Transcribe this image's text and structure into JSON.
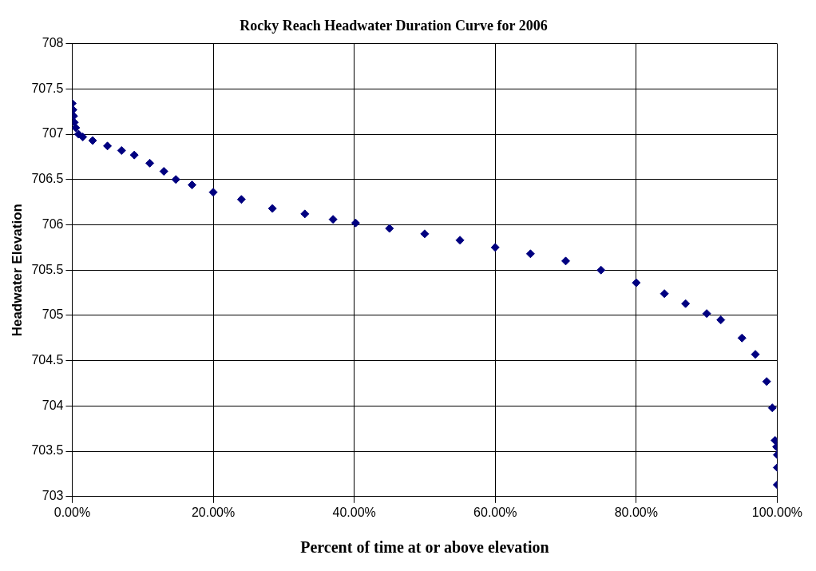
{
  "chart_data": {
    "type": "scatter",
    "title": "Rocky Reach Headwater Duration Curve for 2006",
    "xlabel": "Percent of time at or above elevation",
    "ylabel": "Headwater Elevation",
    "x": [
      0,
      0.001,
      0.002,
      0.003,
      0.005,
      0.009,
      0.015,
      0.029,
      0.05,
      0.07,
      0.088,
      0.11,
      0.13,
      0.147,
      0.17,
      0.2,
      0.24,
      0.284,
      0.33,
      0.37,
      0.402,
      0.45,
      0.5,
      0.55,
      0.6,
      0.65,
      0.7,
      0.75,
      0.8,
      0.84,
      0.87,
      0.9,
      0.92,
      0.95,
      0.969,
      0.985,
      0.993,
      0.997,
      0.999,
      1,
      1,
      1
    ],
    "series": [
      {
        "color": "#000080",
        "values": [
          707.34,
          707.27,
          707.2,
          707.13,
          707.07,
          707.0,
          706.97,
          706.93,
          706.87,
          706.82,
          706.77,
          706.68,
          706.59,
          706.5,
          706.44,
          706.36,
          706.28,
          706.18,
          706.12,
          706.06,
          706.02,
          705.96,
          705.9,
          705.83,
          705.75,
          705.68,
          705.6,
          705.5,
          705.36,
          705.24,
          705.13,
          705.02,
          704.95,
          704.75,
          704.57,
          704.27,
          703.98,
          703.62,
          703.55,
          703.46,
          703.32,
          703.13
        ]
      }
    ],
    "xlim": [
      0,
      1
    ],
    "xticks": [
      {
        "value": 0,
        "label": "0.00%"
      },
      {
        "value": 0.2,
        "label": "20.00%"
      },
      {
        "value": 0.4,
        "label": "40.00%"
      },
      {
        "value": 0.6,
        "label": "60.00%"
      },
      {
        "value": 0.8,
        "label": "80.00%"
      },
      {
        "value": 1,
        "label": "100.00%"
      }
    ],
    "ylim": [
      703,
      708
    ],
    "yticks": [
      703,
      703.5,
      704,
      704.5,
      705,
      705.5,
      706,
      706.5,
      707,
      707.5,
      708
    ],
    "grid": true,
    "legend": false,
    "marker": "diamond"
  }
}
